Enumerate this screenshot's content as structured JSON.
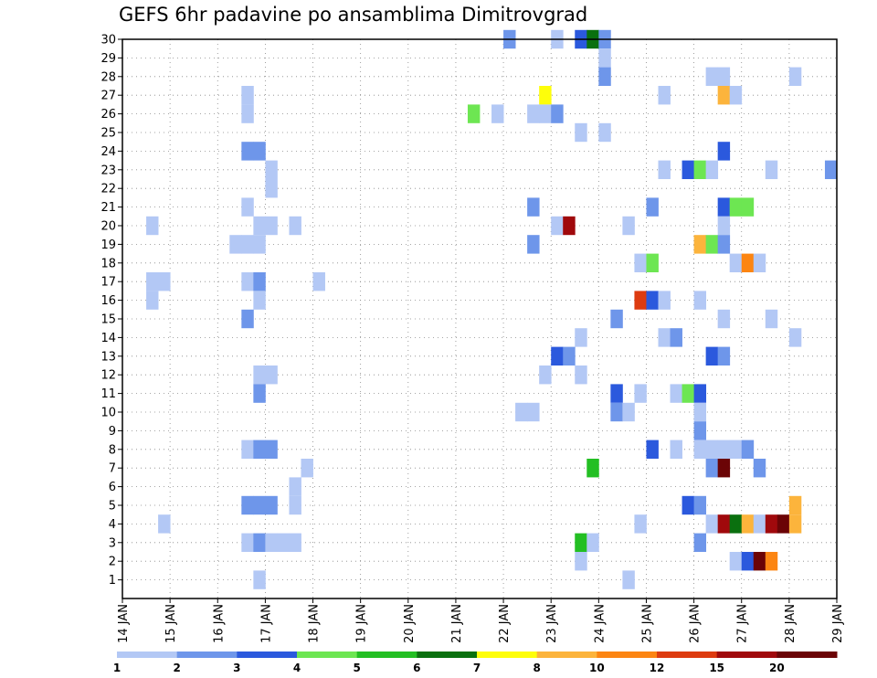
{
  "chart_data": {
    "type": "heatmap",
    "title": "GEFS 6hr padavine po ansamblima Dimitrovgrad",
    "x_tick_labels": [
      "14 JAN",
      "15 JAN",
      "16 JAN",
      "17 JAN",
      "18 JAN",
      "19 JAN",
      "20 JAN",
      "21 JAN",
      "22 JAN",
      "23 JAN",
      "24 JAN",
      "25 JAN",
      "26 JAN",
      "27 JAN",
      "28 JAN",
      "29 JAN"
    ],
    "y_tick_labels": [
      "1",
      "2",
      "3",
      "4",
      "5",
      "6",
      "7",
      "8",
      "9",
      "10",
      "11",
      "12",
      "13",
      "14",
      "15",
      "16",
      "17",
      "18",
      "19",
      "20",
      "21",
      "22",
      "23",
      "24",
      "25",
      "26",
      "27",
      "28",
      "29",
      "30"
    ],
    "x_range_days": [
      14,
      29
    ],
    "y_range": [
      0,
      30
    ],
    "grid": true,
    "colorbar": {
      "labels": [
        "1",
        "2",
        "3",
        "4",
        "5",
        "6",
        "7",
        "8",
        "10",
        "12",
        "15",
        "20"
      ],
      "colors": [
        "#b3c8f5",
        "#6e96ea",
        "#2b59dd",
        "#6de652",
        "#23bf23",
        "#0a700f",
        "#fefe0a",
        "#fcb43c",
        "#fc8512",
        "#dd3b10",
        "#a0090c",
        "#6b0406"
      ]
    },
    "cells": [
      [
        30,
        22.0,
        2
      ],
      [
        30,
        23.0,
        1
      ],
      [
        30,
        23.5,
        3
      ],
      [
        30,
        23.75,
        6
      ],
      [
        30,
        24.0,
        2
      ],
      [
        29,
        24.0,
        1
      ],
      [
        28,
        24.0,
        2
      ],
      [
        28,
        26.25,
        1
      ],
      [
        28,
        26.5,
        1
      ],
      [
        28,
        28.0,
        1
      ],
      [
        27,
        16.5,
        1
      ],
      [
        27,
        22.75,
        7
      ],
      [
        27,
        25.25,
        1
      ],
      [
        27,
        26.5,
        8
      ],
      [
        27,
        26.75,
        1
      ],
      [
        26,
        16.5,
        1
      ],
      [
        26,
        21.25,
        4
      ],
      [
        26,
        21.75,
        1
      ],
      [
        26,
        22.5,
        1
      ],
      [
        26,
        22.75,
        1
      ],
      [
        26,
        23.0,
        2
      ],
      [
        25,
        23.5,
        1
      ],
      [
        25,
        24.0,
        1
      ],
      [
        24,
        16.5,
        2
      ],
      [
        24,
        16.75,
        2
      ],
      [
        24,
        26.5,
        3
      ],
      [
        23,
        17.0,
        1
      ],
      [
        23,
        25.25,
        1
      ],
      [
        23,
        25.75,
        3
      ],
      [
        23,
        26.0,
        4
      ],
      [
        23,
        26.25,
        1
      ],
      [
        23,
        27.5,
        1
      ],
      [
        23,
        28.75,
        2
      ],
      [
        22,
        17.0,
        1
      ],
      [
        21,
        16.5,
        1
      ],
      [
        21,
        22.5,
        2
      ],
      [
        21,
        25.0,
        2
      ],
      [
        21,
        26.5,
        3
      ],
      [
        21,
        26.75,
        4
      ],
      [
        21,
        27.0,
        4
      ],
      [
        20,
        14.5,
        1
      ],
      [
        20,
        16.75,
        1
      ],
      [
        20,
        17.0,
        1
      ],
      [
        20,
        17.5,
        1
      ],
      [
        20,
        23.0,
        1
      ],
      [
        20,
        23.25,
        11
      ],
      [
        20,
        24.5,
        1
      ],
      [
        20,
        26.5,
        1
      ],
      [
        19,
        16.25,
        1
      ],
      [
        19,
        16.5,
        1
      ],
      [
        19,
        16.75,
        1
      ],
      [
        19,
        22.5,
        2
      ],
      [
        19,
        26.0,
        8
      ],
      [
        19,
        26.25,
        4
      ],
      [
        19,
        26.5,
        2
      ],
      [
        18,
        24.75,
        1
      ],
      [
        18,
        25.0,
        4
      ],
      [
        18,
        26.75,
        1
      ],
      [
        18,
        27.0,
        9
      ],
      [
        18,
        27.25,
        1
      ],
      [
        17,
        14.5,
        1
      ],
      [
        17,
        14.75,
        1
      ],
      [
        17,
        16.5,
        1
      ],
      [
        17,
        16.75,
        2
      ],
      [
        17,
        18.0,
        1
      ],
      [
        16,
        14.5,
        1
      ],
      [
        16,
        16.75,
        1
      ],
      [
        16,
        24.75,
        10
      ],
      [
        16,
        25.0,
        3
      ],
      [
        16,
        25.25,
        1
      ],
      [
        16,
        26.0,
        1
      ],
      [
        15,
        16.5,
        2
      ],
      [
        15,
        24.25,
        2
      ],
      [
        15,
        26.5,
        1
      ],
      [
        15,
        27.5,
        1
      ],
      [
        14,
        23.5,
        1
      ],
      [
        14,
        25.25,
        1
      ],
      [
        14,
        25.5,
        2
      ],
      [
        14,
        28.0,
        1
      ],
      [
        13,
        23.0,
        3
      ],
      [
        13,
        23.25,
        2
      ],
      [
        13,
        26.25,
        3
      ],
      [
        13,
        26.5,
        2
      ],
      [
        12,
        16.75,
        1
      ],
      [
        12,
        17.0,
        1
      ],
      [
        12,
        22.75,
        1
      ],
      [
        12,
        23.5,
        1
      ],
      [
        11,
        16.75,
        2
      ],
      [
        11,
        24.25,
        3
      ],
      [
        11,
        24.75,
        1
      ],
      [
        11,
        25.5,
        1
      ],
      [
        11,
        25.75,
        4
      ],
      [
        11,
        26.0,
        3
      ],
      [
        10,
        22.25,
        1
      ],
      [
        10,
        22.5,
        1
      ],
      [
        10,
        24.25,
        2
      ],
      [
        10,
        24.5,
        1
      ],
      [
        10,
        26.0,
        1
      ],
      [
        9,
        26.0,
        2
      ],
      [
        8,
        16.5,
        1
      ],
      [
        8,
        16.75,
        2
      ],
      [
        8,
        17.0,
        2
      ],
      [
        8,
        25.0,
        3
      ],
      [
        8,
        25.5,
        1
      ],
      [
        8,
        26.0,
        1
      ],
      [
        8,
        26.25,
        1
      ],
      [
        8,
        26.5,
        1
      ],
      [
        8,
        26.75,
        1
      ],
      [
        8,
        27.0,
        2
      ],
      [
        7,
        17.75,
        1
      ],
      [
        7,
        23.75,
        5
      ],
      [
        7,
        26.25,
        2
      ],
      [
        7,
        26.5,
        12
      ],
      [
        7,
        27.25,
        2
      ],
      [
        6,
        17.5,
        1
      ],
      [
        5,
        16.5,
        2
      ],
      [
        5,
        16.75,
        2
      ],
      [
        5,
        17.0,
        2
      ],
      [
        5,
        17.5,
        1
      ],
      [
        5,
        25.75,
        3
      ],
      [
        5,
        26.0,
        2
      ],
      [
        5,
        28.0,
        8
      ],
      [
        4,
        14.75,
        1
      ],
      [
        4,
        24.75,
        1
      ],
      [
        4,
        26.25,
        1
      ],
      [
        4,
        26.5,
        11
      ],
      [
        4,
        26.75,
        6
      ],
      [
        4,
        27.0,
        8
      ],
      [
        4,
        27.25,
        1
      ],
      [
        4,
        27.5,
        11
      ],
      [
        4,
        27.75,
        12
      ],
      [
        4,
        28.0,
        8
      ],
      [
        3,
        16.5,
        1
      ],
      [
        3,
        16.75,
        2
      ],
      [
        3,
        17.0,
        1
      ],
      [
        3,
        17.25,
        1
      ],
      [
        3,
        17.5,
        1
      ],
      [
        3,
        23.5,
        5
      ],
      [
        3,
        23.75,
        1
      ],
      [
        3,
        26.0,
        2
      ],
      [
        2,
        23.5,
        1
      ],
      [
        2,
        26.75,
        1
      ],
      [
        2,
        27.0,
        3
      ],
      [
        2,
        27.25,
        12
      ],
      [
        2,
        27.5,
        9
      ],
      [
        1,
        16.75,
        1
      ],
      [
        1,
        24.5,
        1
      ]
    ]
  }
}
